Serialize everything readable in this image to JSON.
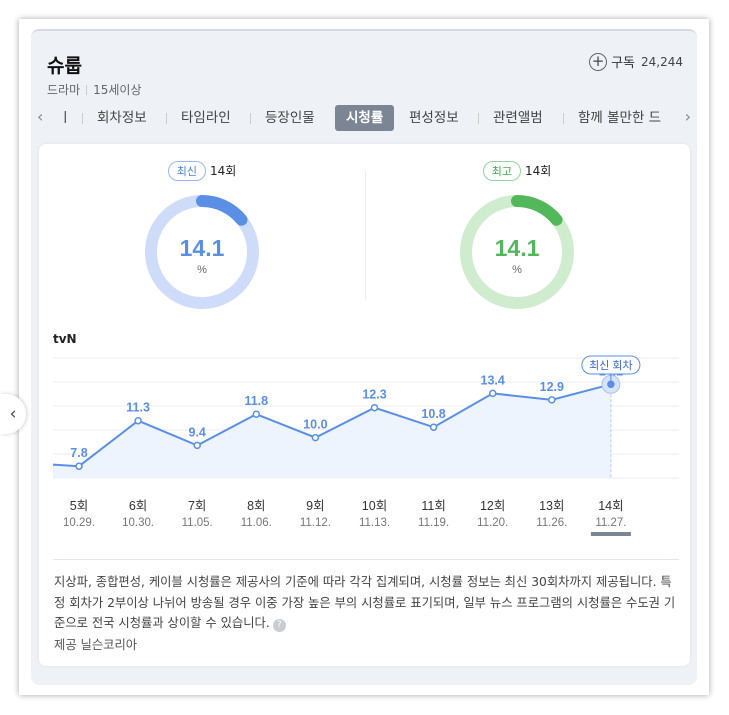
{
  "header": {
    "title": "슈룹",
    "genre": "드라마",
    "rating": "15세이상",
    "subscribe_label": "구독",
    "subscribe_count": "24,244"
  },
  "tabs": [
    {
      "label": "ㅣ"
    },
    {
      "label": "회차정보"
    },
    {
      "label": "타임라인"
    },
    {
      "label": "등장인물"
    },
    {
      "label": "시청률",
      "active": true
    },
    {
      "label": "편성정보"
    },
    {
      "label": "관련앨범"
    },
    {
      "label": "함께 볼만한 드"
    }
  ],
  "latest": {
    "badge": "최신",
    "episode": "14회",
    "value": "14.1",
    "unit": "%",
    "fraction": 0.141
  },
  "highest": {
    "badge": "최고",
    "episode": "14회",
    "value": "14.1",
    "unit": "%",
    "fraction": 0.141
  },
  "colors": {
    "blue": "#5b8fe6",
    "blue_light": "#cfdcf9",
    "green": "#53b85c",
    "green_light": "#cfeccf"
  },
  "station": "tvN",
  "chart_data": {
    "type": "line",
    "x": [
      "5회",
      "6회",
      "7회",
      "8회",
      "9회",
      "10회",
      "11회",
      "12회",
      "13회",
      "14회"
    ],
    "dates": [
      "10.29.",
      "10.30.",
      "11.05.",
      "11.06.",
      "11.12.",
      "11.13.",
      "11.19.",
      "11.20.",
      "11.26.",
      "11.27."
    ],
    "values": [
      7.8,
      11.3,
      9.4,
      11.8,
      10.0,
      12.3,
      10.8,
      13.4,
      12.9,
      14.1
    ],
    "labels": [
      "7.8",
      "11.3",
      "9.4",
      "11.8",
      "10.0",
      "12.3",
      "10.8",
      "13.4",
      "12.9",
      "14.1"
    ],
    "latest_tag": "최신 회차",
    "grid": true
  },
  "note": "지상파, 종합편성, 케이블 시청률은 제공사의 기준에 따라 각각 집계되며, 시청률 정보는 최신 30회차까지 제공됩니다. 특정 회차가 2부이상 나뉘어 방송될 경우 이중 가장 높은 부의 시청률로 표기되며, 일부 뉴스 프로그램의 시청률은 수도권 기준으로 전국 시청률과 상이할 수 있습니다.",
  "help_glyph": "?",
  "provider": "제공 닐슨코리아",
  "icons": {
    "left_chevron": "‹",
    "right_chevron": "›",
    "plus": "+",
    "side_arrow": "‹"
  }
}
